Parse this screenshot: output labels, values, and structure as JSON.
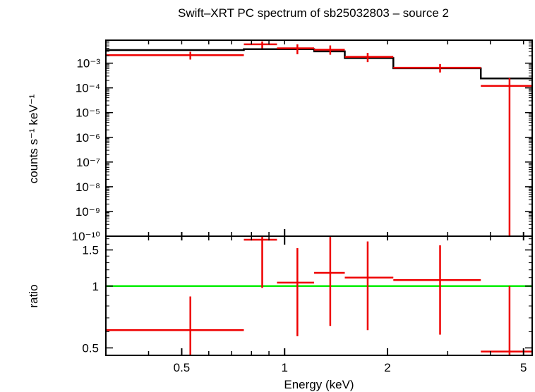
{
  "chart_data": [
    {
      "type": "scatter",
      "panel": "spectrum",
      "title": "Swift–XRT PC spectrum of sb25032803 – source 2",
      "ylabel": "counts s⁻¹ keV⁻¹",
      "xscale": "log",
      "yscale": "log",
      "xlim": [
        0.3,
        5.3
      ],
      "ylim": [
        1e-10,
        0.0085
      ],
      "yticks": [
        {
          "value": 0.001,
          "label": "10⁻³"
        },
        {
          "value": 0.0001,
          "label": "10⁻⁴"
        },
        {
          "value": 1e-05,
          "label": "10⁻⁵"
        },
        {
          "value": 1e-06,
          "label": "10⁻⁶"
        },
        {
          "value": 1e-07,
          "label": "10⁻⁷"
        },
        {
          "value": 1e-08,
          "label": "10⁻⁸"
        },
        {
          "value": 1e-09,
          "label": "10⁻⁹"
        },
        {
          "value": 1e-10,
          "label": "10⁻¹⁰"
        }
      ],
      "series": [
        {
          "name": "data",
          "color": "#ee0000",
          "points": [
            {
              "x": 0.53,
              "xlo": 0.3,
              "xhi": 0.76,
              "y": 0.0021,
              "ylo": 0.0014,
              "yhi": 0.0029
            },
            {
              "x": 0.86,
              "xlo": 0.76,
              "xhi": 0.95,
              "y": 0.0058,
              "ylo": 0.004,
              "yhi": 0.0076
            },
            {
              "x": 1.09,
              "xlo": 0.95,
              "xhi": 1.22,
              "y": 0.004,
              "ylo": 0.0023,
              "yhi": 0.0058
            },
            {
              "x": 1.36,
              "xlo": 1.22,
              "xhi": 1.5,
              "y": 0.0035,
              "ylo": 0.0022,
              "yhi": 0.0052
            },
            {
              "x": 1.75,
              "xlo": 1.5,
              "xhi": 2.08,
              "y": 0.0018,
              "ylo": 0.0011,
              "yhi": 0.0026
            },
            {
              "x": 2.85,
              "xlo": 2.08,
              "xhi": 3.75,
              "y": 0.00065,
              "ylo": 0.00042,
              "yhi": 0.00092
            },
            {
              "x": 4.55,
              "xlo": 3.75,
              "xhi": 5.3,
              "y": 0.00012,
              "ylo": 1e-10,
              "yhi": 0.00025
            }
          ]
        },
        {
          "name": "model",
          "color": "#000000",
          "steps": [
            {
              "xlo": 0.3,
              "xhi": 0.76,
              "y": 0.0034
            },
            {
              "xlo": 0.76,
              "xhi": 1.22,
              "y": 0.0037
            },
            {
              "xlo": 1.22,
              "xhi": 1.5,
              "y": 0.003
            },
            {
              "xlo": 1.5,
              "xhi": 2.08,
              "y": 0.0016
            },
            {
              "xlo": 2.08,
              "xhi": 3.75,
              "y": 0.00062
            },
            {
              "xlo": 3.75,
              "xhi": 5.3,
              "y": 0.00024
            }
          ]
        }
      ]
    },
    {
      "type": "scatter",
      "panel": "ratio",
      "xlabel": "Energy (keV)",
      "ylabel": "ratio",
      "xscale": "log",
      "yscale": "log",
      "xlim": [
        0.3,
        5.3
      ],
      "ylim": [
        0.46,
        1.75
      ],
      "xticks": [
        {
          "value": 0.5,
          "label": "0.5"
        },
        {
          "value": 1,
          "label": "1"
        },
        {
          "value": 2,
          "label": "2"
        },
        {
          "value": 5,
          "label": "5"
        }
      ],
      "yticks": [
        {
          "value": 0.5,
          "label": "0.5"
        },
        {
          "value": 1,
          "label": "1"
        },
        {
          "value": 1.5,
          "label": "1.5"
        }
      ],
      "reference_line": {
        "y": 1,
        "color": "#00ee00"
      },
      "series": [
        {
          "name": "ratio",
          "color": "#ee0000",
          "points": [
            {
              "x": 0.53,
              "xlo": 0.3,
              "xhi": 0.76,
              "y": 0.61,
              "ylo": 0.46,
              "yhi": 0.89
            },
            {
              "x": 0.86,
              "xlo": 0.76,
              "xhi": 0.95,
              "y": 1.73,
              "ylo": 0.98,
              "yhi": 1.75
            },
            {
              "x": 1.09,
              "xlo": 0.95,
              "xhi": 1.22,
              "y": 1.04,
              "ylo": 0.57,
              "yhi": 1.53
            },
            {
              "x": 1.36,
              "xlo": 1.22,
              "xhi": 1.5,
              "y": 1.16,
              "ylo": 0.64,
              "yhi": 1.75
            },
            {
              "x": 1.75,
              "xlo": 1.5,
              "xhi": 2.08,
              "y": 1.1,
              "ylo": 0.61,
              "yhi": 1.65
            },
            {
              "x": 2.85,
              "xlo": 2.08,
              "xhi": 3.75,
              "y": 1.07,
              "ylo": 0.58,
              "yhi": 1.58
            },
            {
              "x": 4.55,
              "xlo": 3.75,
              "xhi": 5.3,
              "y": 0.48,
              "ylo": 0.46,
              "yhi": 1.0
            }
          ]
        }
      ]
    }
  ]
}
